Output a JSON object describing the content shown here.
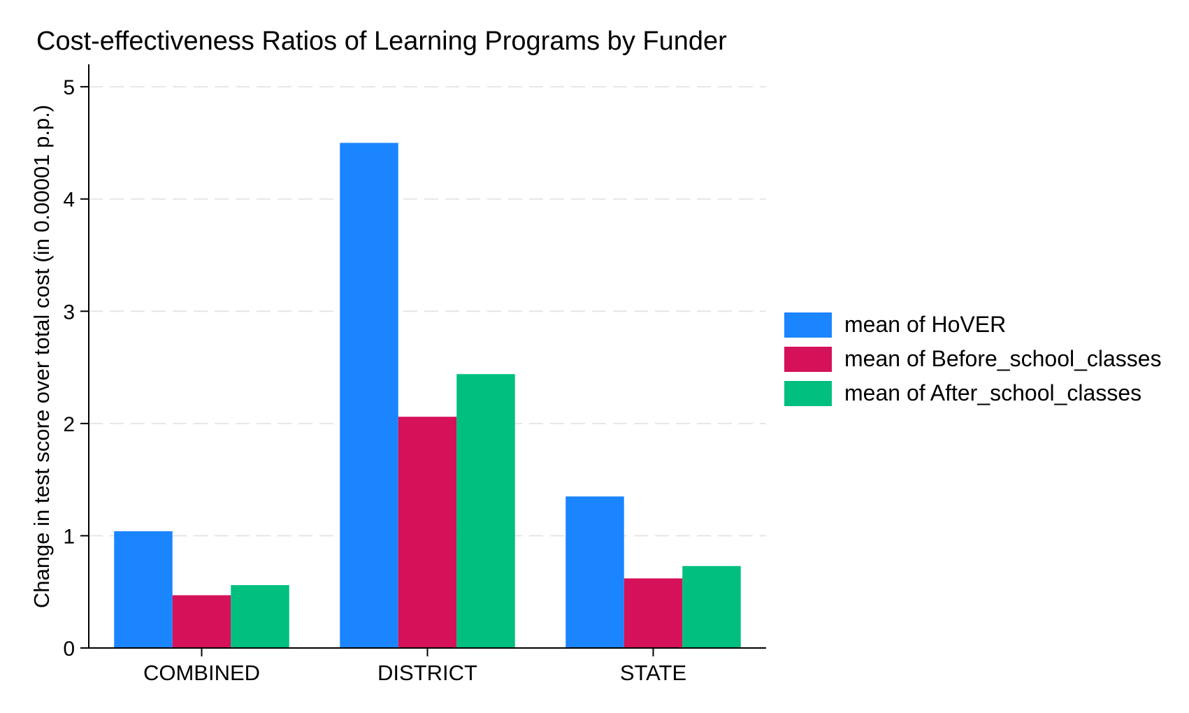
{
  "chart_data": {
    "type": "bar",
    "title": "Cost-effectiveness Ratios of Learning Programs by Funder",
    "ylabel": "Change in test score over total cost (in 0.00001 p.p.)",
    "xlabel": "",
    "categories": [
      "COMBINED",
      "DISTRICT",
      "STATE"
    ],
    "series": [
      {
        "name": "mean of HoVER",
        "color": "#1a85ff",
        "values": [
          1.04,
          4.5,
          1.35
        ]
      },
      {
        "name": "mean of Before_school_classes",
        "color": "#d41159",
        "values": [
          0.47,
          2.06,
          0.62
        ]
      },
      {
        "name": "mean of After_school_classes",
        "color": "#00bf7f",
        "values": [
          0.56,
          2.44,
          0.73
        ]
      }
    ],
    "ylim": [
      0,
      5.2
    ],
    "yticks": [
      0,
      1,
      2,
      3,
      4,
      5
    ],
    "grid": true,
    "legend_position": "right"
  }
}
